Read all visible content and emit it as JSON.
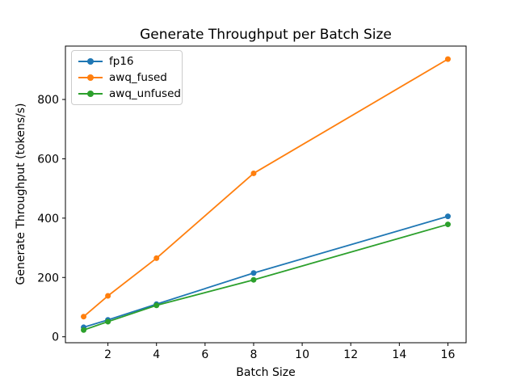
{
  "chart_data": {
    "type": "line",
    "title": "Generate Throughput per Batch Size",
    "xlabel": "Batch Size",
    "ylabel": "Generate Throughput (tokens/s)",
    "x": [
      1,
      2,
      4,
      8,
      16
    ],
    "series": [
      {
        "name": "fp16",
        "color": "#1f77b4",
        "values": [
          32,
          57,
          110,
          215,
          406
        ]
      },
      {
        "name": "awq_fused",
        "color": "#ff7f0e",
        "values": [
          68,
          138,
          265,
          551,
          936
        ]
      },
      {
        "name": "awq_unfused",
        "color": "#2ca02c",
        "values": [
          23,
          51,
          106,
          192,
          379
        ]
      }
    ],
    "xticks": [
      2,
      4,
      6,
      8,
      10,
      12,
      14,
      16
    ],
    "yticks": [
      0,
      200,
      400,
      600,
      800
    ],
    "xlim": [
      0.25,
      16.75
    ],
    "ylim": [
      -20,
      980
    ],
    "grid": false,
    "legend_position": "upper-left",
    "marker": "circle",
    "line_style": "solid",
    "background_color": "#ffffff",
    "axis_color": "#000000"
  }
}
